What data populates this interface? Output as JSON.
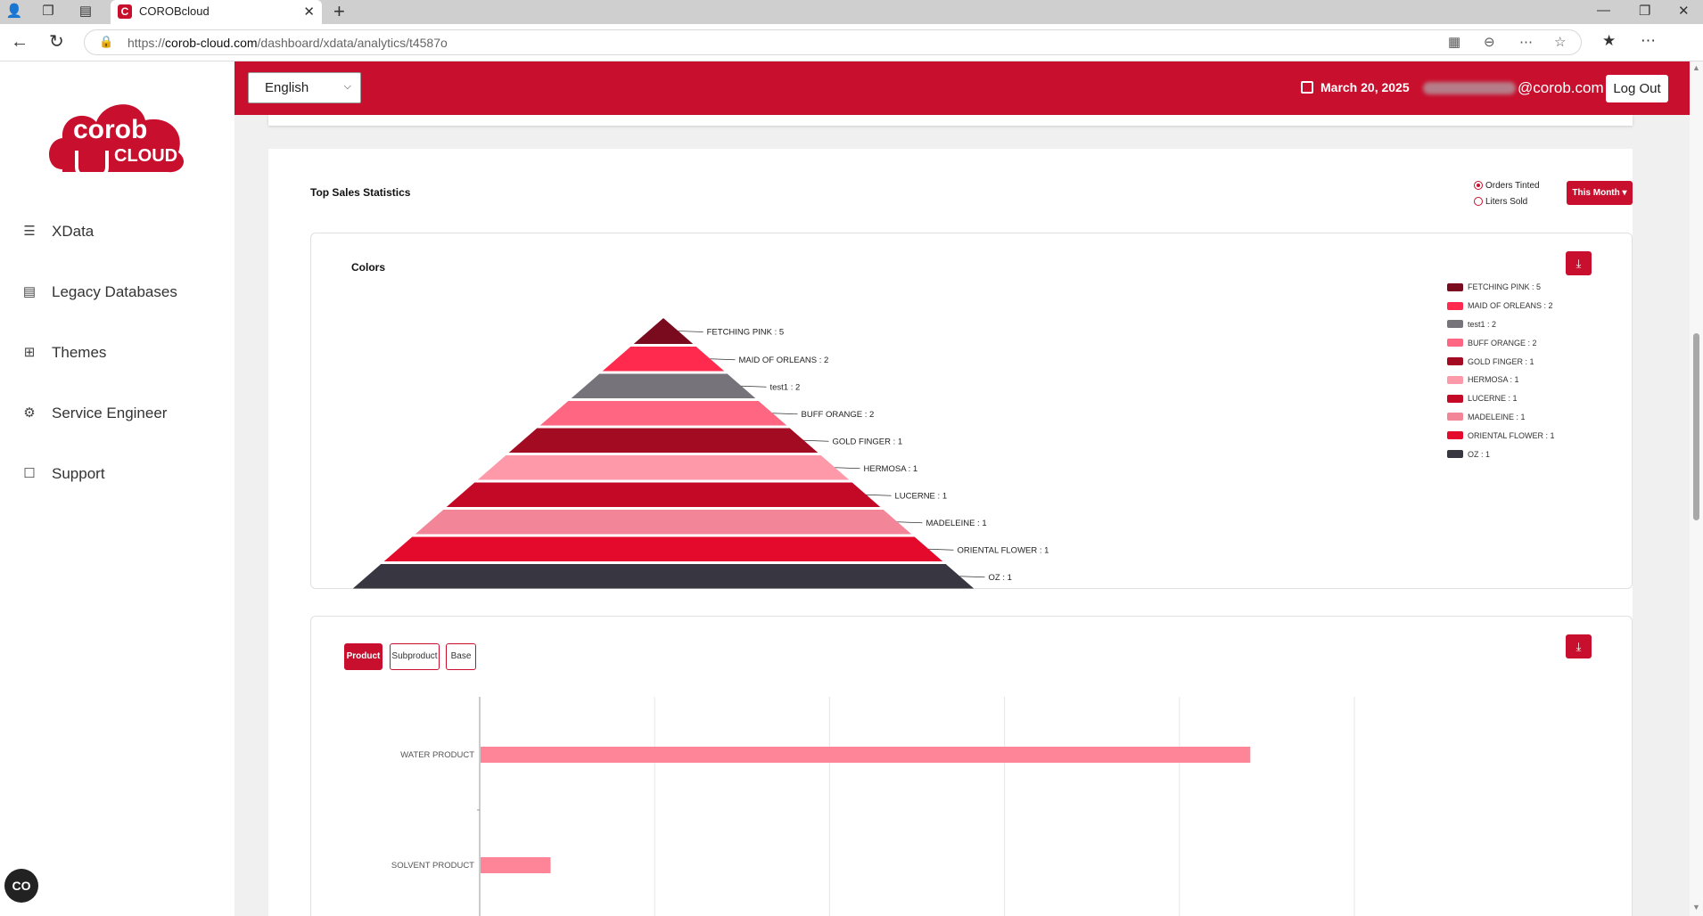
{
  "browser": {
    "tab_title": "COROBcloud",
    "url_prefix": "https://",
    "url_host": "corob-cloud.com",
    "url_path": "/dashboard/xdata/analytics/t4587o"
  },
  "sidebar": {
    "logo_word1": "corob",
    "logo_word2": "CLOUD",
    "items": [
      {
        "label": "XData",
        "icon": "layers-icon"
      },
      {
        "label": "Legacy Databases",
        "icon": "database-icon"
      },
      {
        "label": "Themes",
        "icon": "grid-icon"
      },
      {
        "label": "Service Engineer",
        "icon": "engineer-icon"
      },
      {
        "label": "Support",
        "icon": "chat-icon"
      }
    ],
    "badge": "CO"
  },
  "header": {
    "language": "English",
    "date": "March 20, 2025",
    "email_suffix": "@corob.com",
    "logout_label": "Log Out",
    "accent_color": "#c8102e"
  },
  "stats": {
    "title": "Top Sales Statistics",
    "radio_options": [
      "Orders Tinted",
      "Liters Sold"
    ],
    "selected_radio": "Orders Tinted",
    "period_label": "This Month"
  },
  "chart_data": [
    {
      "type": "pyramid",
      "title": "Colors",
      "categories": [
        "FETCHING PINK",
        "MAID OF ORLEANS",
        "test1",
        "BUFF ORANGE",
        "GOLD FINGER",
        "HERMOSA",
        "LUCERNE",
        "MADELEINE",
        "ORIENTAL FLOWER",
        "OZ"
      ],
      "values": [
        5,
        2,
        2,
        2,
        1,
        1,
        1,
        1,
        1,
        1
      ],
      "colors": [
        "#7a0a1e",
        "#ff2a4d",
        "#77737b",
        "#fe6681",
        "#a30b22",
        "#fd99a8",
        "#c40926",
        "#f38598",
        "#e40a2c",
        "#383741"
      ],
      "legend": "right"
    },
    {
      "type": "bar",
      "orientation": "horizontal",
      "tabs": [
        "Product",
        "Subproduct",
        "Base"
      ],
      "selected_tab": "Product",
      "categories": [
        "WATER PRODUCT",
        "SOLVENT PRODUCT"
      ],
      "values": [
        11,
        1
      ],
      "xlim": [
        0,
        12.5
      ],
      "color": "#fe8597",
      "grid": true
    }
  ]
}
